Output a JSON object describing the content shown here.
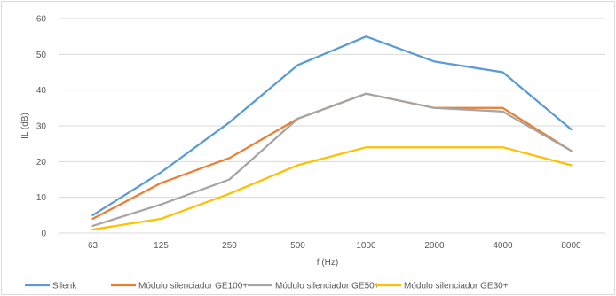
{
  "chart_data": {
    "type": "line",
    "categories": [
      "63",
      "125",
      "250",
      "500",
      "1000",
      "2000",
      "4000",
      "8000"
    ],
    "series": [
      {
        "name": "Silenk",
        "color": "#5b9bd5",
        "values": [
          5,
          17,
          31,
          47,
          55,
          48,
          45,
          29
        ]
      },
      {
        "name": "Módulo silenciador GE100+",
        "color": "#ed7d31",
        "values": [
          4,
          14,
          21,
          32,
          39,
          35,
          35,
          23
        ]
      },
      {
        "name": "Módulo silenciador GE50+",
        "color": "#a5a5a5",
        "values": [
          2,
          8,
          15,
          32,
          39,
          35,
          34,
          23
        ]
      },
      {
        "name": "Módulo silenciador GE30+",
        "color": "#ffc000",
        "values": [
          1,
          4,
          11,
          19,
          24,
          24,
          24,
          19
        ]
      }
    ],
    "xlabel": "f (Hz)",
    "ylabel": "IL (dB)",
    "ylim": [
      0,
      60
    ],
    "yticks": [
      "0",
      "10",
      "20",
      "30",
      "40",
      "50",
      "60"
    ],
    "grid": true,
    "legend": "bottom"
  }
}
